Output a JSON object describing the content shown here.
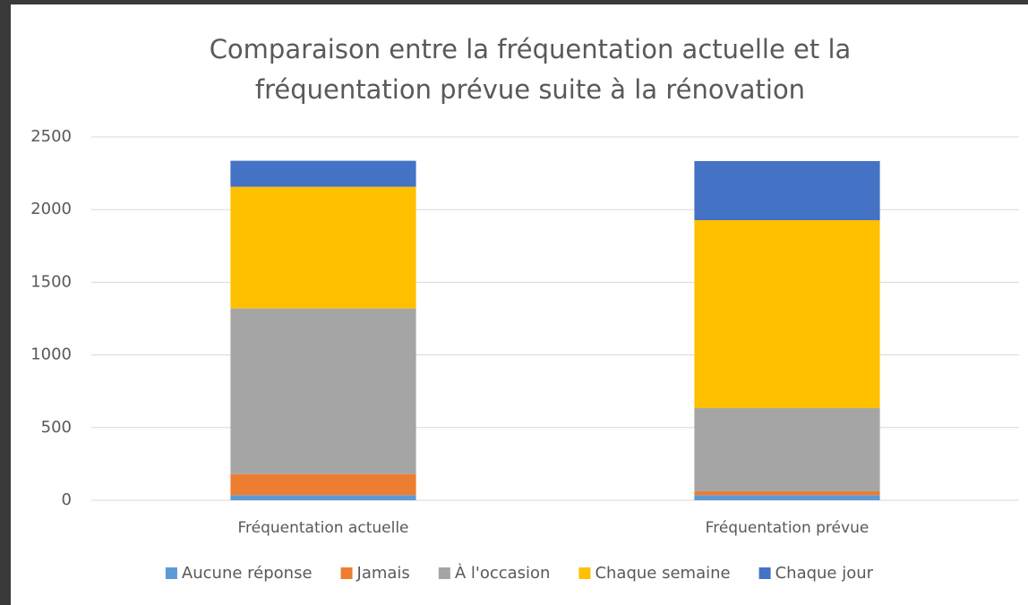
{
  "chart_data": {
    "type": "stacked_bar",
    "title": [
      "Comparaison entre la fréquentation actuelle et la",
      "fréquentation prévue suite à la rénovation"
    ],
    "categories": [
      "Fréquentation actuelle",
      "Fréquentation prévue"
    ],
    "series": [
      {
        "name": "Aucune réponse",
        "color": "#5b9bd5",
        "values": [
          35,
          35
        ]
      },
      {
        "name": "Jamais",
        "color": "#ed7d31",
        "values": [
          145,
          27
        ]
      },
      {
        "name": "À l'occasion",
        "color": "#a5a5a5",
        "values": [
          1140,
          572
        ]
      },
      {
        "name": "Chaque semaine",
        "color": "#ffc000",
        "values": [
          837,
          1293
        ]
      },
      {
        "name": "Chaque jour",
        "color": "#4472c4",
        "values": [
          179,
          407
        ]
      }
    ],
    "ylim": [
      0,
      2500
    ],
    "yticks": [
      0,
      500,
      1000,
      1500,
      2000,
      2500
    ],
    "grid": true,
    "legend": "bottom"
  }
}
